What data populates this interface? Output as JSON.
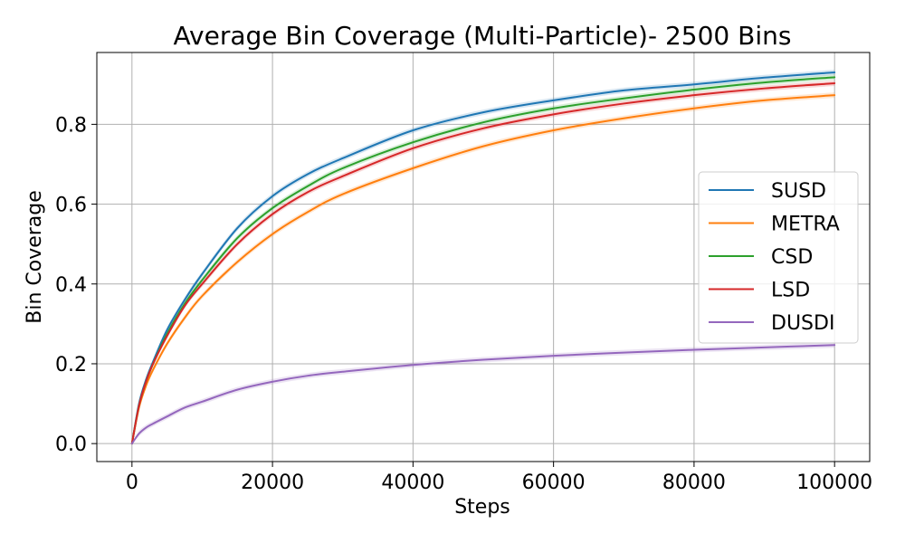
{
  "chart_data": {
    "type": "line",
    "title": "Average Bin Coverage (Multi-Particle)- 2500 Bins",
    "xlabel": "Steps",
    "ylabel": "Bin Coverage",
    "xlim": [
      -5000,
      105000
    ],
    "ylim": [
      -0.045,
      0.98
    ],
    "xticks": [
      0,
      20000,
      40000,
      60000,
      80000,
      100000
    ],
    "xtick_labels": [
      "0",
      "20000",
      "40000",
      "60000",
      "80000",
      "100000"
    ],
    "yticks": [
      0.0,
      0.2,
      0.4,
      0.6,
      0.8
    ],
    "ytick_labels": [
      "0.0",
      "0.2",
      "0.4",
      "0.6",
      "0.8"
    ],
    "grid": true,
    "legend_position": "center-right",
    "x": [
      0,
      1000,
      2000,
      3000,
      5000,
      7500,
      10000,
      15000,
      20000,
      25000,
      30000,
      40000,
      50000,
      60000,
      70000,
      80000,
      90000,
      100000
    ],
    "series": [
      {
        "name": "SUSD",
        "color": "#1f77b4",
        "values": [
          0.0,
          0.1,
          0.16,
          0.205,
          0.285,
          0.36,
          0.425,
          0.54,
          0.62,
          0.675,
          0.715,
          0.785,
          0.83,
          0.86,
          0.885,
          0.9,
          0.917,
          0.93
        ]
      },
      {
        "name": "METRA",
        "color": "#ff7f0e",
        "values": [
          0.0,
          0.09,
          0.145,
          0.185,
          0.25,
          0.315,
          0.37,
          0.455,
          0.525,
          0.58,
          0.625,
          0.69,
          0.745,
          0.785,
          0.815,
          0.84,
          0.86,
          0.873
        ]
      },
      {
        "name": "CSD",
        "color": "#2ca02c",
        "values": [
          0.0,
          0.095,
          0.155,
          0.2,
          0.275,
          0.35,
          0.41,
          0.515,
          0.59,
          0.645,
          0.69,
          0.755,
          0.805,
          0.84,
          0.865,
          0.887,
          0.905,
          0.918
        ]
      },
      {
        "name": "LSD",
        "color": "#d62728",
        "values": [
          0.0,
          0.095,
          0.155,
          0.2,
          0.27,
          0.345,
          0.4,
          0.5,
          0.575,
          0.63,
          0.67,
          0.74,
          0.79,
          0.825,
          0.852,
          0.873,
          0.89,
          0.903
        ]
      },
      {
        "name": "DUSDI",
        "color": "#9467bd",
        "values": [
          0.0,
          0.025,
          0.04,
          0.05,
          0.068,
          0.09,
          0.105,
          0.135,
          0.155,
          0.17,
          0.18,
          0.197,
          0.21,
          0.22,
          0.228,
          0.235,
          0.241,
          0.247
        ]
      }
    ]
  }
}
